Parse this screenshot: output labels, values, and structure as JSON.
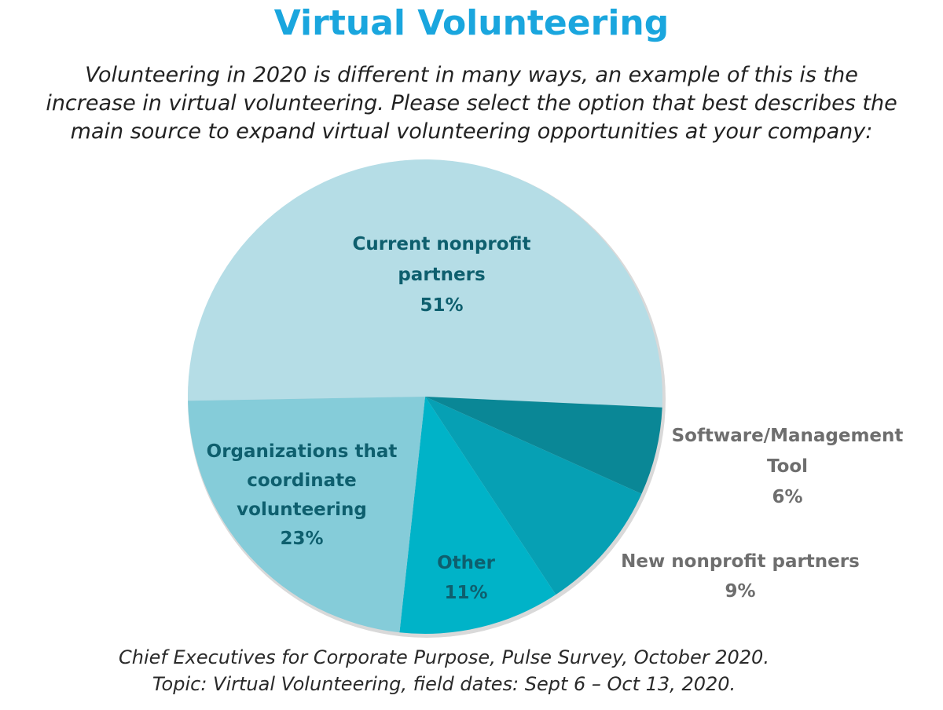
{
  "title": "Virtual Volunteering",
  "subtitle_lines": [
    "Volunteering in 2020 is different in many ways, an example of this is the",
    "increase in virtual volunteering. Please select the option that best describes the",
    "main source to expand virtual volunteering opportunities at your company:"
  ],
  "source_lines": [
    "Chief Executives for Corporate Purpose, Pulse Survey, October 2020.",
    "Topic: Virtual Volunteering, field dates: Sept 6 – Oct 13, 2020."
  ],
  "colors": {
    "title": "#1aa6de",
    "inside_label": "#0e5f6e",
    "outside_label": "#6e6e6e"
  },
  "chart_data": {
    "type": "pie",
    "slices": [
      {
        "label_lines": [
          "Current nonprofit",
          "partners"
        ],
        "pct_text": "51%",
        "value": 51,
        "color": "#b5dde6",
        "label_position": "inside"
      },
      {
        "label_lines": [
          "Software/Management",
          "Tool"
        ],
        "pct_text": "6%",
        "value": 6,
        "color": "#0a8796",
        "label_position": "outside"
      },
      {
        "label_lines": [
          "New nonprofit partners"
        ],
        "pct_text": "9%",
        "value": 9,
        "color": "#06a0b4",
        "label_position": "outside"
      },
      {
        "label_lines": [
          "Other"
        ],
        "pct_text": "11%",
        "value": 11,
        "color": "#00b3c8",
        "label_position": "inside"
      },
      {
        "label_lines": [
          "Organizations that",
          "coordinate",
          "volunteering"
        ],
        "pct_text": "23%",
        "value": 23,
        "color": "#85ccd9",
        "label_position": "inside"
      }
    ]
  }
}
